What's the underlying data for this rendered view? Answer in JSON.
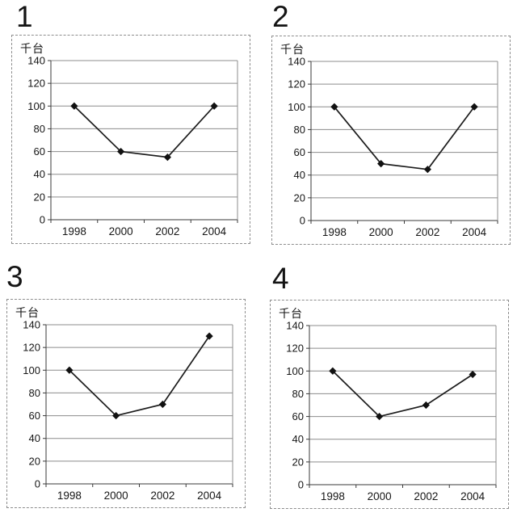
{
  "chart_data": [
    {
      "panel": "1",
      "type": "line",
      "categories": [
        "1998",
        "2000",
        "2002",
        "2004"
      ],
      "values": [
        100,
        60,
        55,
        100
      ],
      "title": "",
      "xlabel": "",
      "ylabel": "千台",
      "ylim": [
        0,
        140
      ],
      "yticks": [
        0,
        20,
        40,
        60,
        80,
        100,
        120,
        140
      ],
      "grid": true,
      "legend": "none",
      "marker": "diamond",
      "line_color": "#1c1c1c",
      "grid_color": "#8c8c8c"
    },
    {
      "panel": "2",
      "type": "line",
      "categories": [
        "1998",
        "2000",
        "2002",
        "2004"
      ],
      "values": [
        100,
        50,
        45,
        100
      ],
      "title": "",
      "xlabel": "",
      "ylabel": "千台",
      "ylim": [
        0,
        140
      ],
      "yticks": [
        0,
        20,
        40,
        60,
        80,
        100,
        120,
        140
      ],
      "grid": true,
      "legend": "none",
      "marker": "diamond",
      "line_color": "#1c1c1c",
      "grid_color": "#8c8c8c"
    },
    {
      "panel": "3",
      "type": "line",
      "categories": [
        "1998",
        "2000",
        "2002",
        "2004"
      ],
      "values": [
        100,
        60,
        70,
        130
      ],
      "title": "",
      "xlabel": "",
      "ylabel": "千台",
      "ylim": [
        0,
        140
      ],
      "yticks": [
        0,
        20,
        40,
        60,
        80,
        100,
        120,
        140
      ],
      "grid": true,
      "legend": "none",
      "marker": "diamond",
      "line_color": "#1c1c1c",
      "grid_color": "#8c8c8c"
    },
    {
      "panel": "4",
      "type": "line",
      "categories": [
        "1998",
        "2000",
        "2002",
        "2004"
      ],
      "values": [
        100,
        60,
        70,
        97
      ],
      "title": "",
      "xlabel": "",
      "ylabel": "千台",
      "ylim": [
        0,
        140
      ],
      "yticks": [
        0,
        20,
        40,
        60,
        80,
        100,
        120,
        140
      ],
      "grid": true,
      "legend": "none",
      "marker": "diamond",
      "line_color": "#1c1c1c",
      "grid_color": "#8c8c8c"
    }
  ]
}
